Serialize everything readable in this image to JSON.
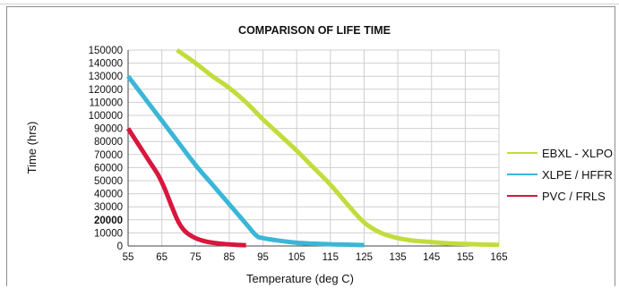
{
  "chart_data": {
    "type": "line",
    "title": "COMPARISON OF LIFE TIME",
    "xlabel": "Temperature (deg C)",
    "ylabel": "Time (hrs)",
    "xlim": [
      55,
      165
    ],
    "ylim": [
      0,
      150000
    ],
    "x_ticks": [
      "55",
      "65",
      "75",
      "85",
      "95",
      "105",
      "115",
      "125",
      "135",
      "145",
      "155",
      "165"
    ],
    "y_ticks": [
      "0",
      "10000",
      "20000",
      "30000",
      "40000",
      "50000",
      "60000",
      "70000",
      "80000",
      "90000",
      "100000",
      "110000",
      "120000",
      "130000",
      "140000",
      "150000"
    ],
    "y_ticks_bold": [
      "20000"
    ],
    "grid": true,
    "legend_position": "right",
    "series": [
      {
        "name": "EBXL - XLPO",
        "color": "#c2dc3c",
        "x": [
          69.5,
          75,
          80,
          85,
          90,
          95,
          100,
          105,
          110,
          115,
          120,
          125,
          130,
          135,
          140,
          145,
          150,
          155,
          160,
          165
        ],
        "y": [
          150000,
          140000,
          130000,
          121000,
          110000,
          97000,
          85000,
          73000,
          60000,
          47000,
          32000,
          18000,
          10000,
          6000,
          4000,
          3000,
          2000,
          1500,
          1100,
          800
        ]
      },
      {
        "name": "XLPE / HFFR",
        "color": "#3ab6d8",
        "x": [
          55,
          60,
          65,
          70,
          75,
          80,
          85,
          90,
          93,
          95,
          100,
          105,
          110,
          115,
          120,
          125
        ],
        "y": [
          130000,
          113000,
          96000,
          79000,
          62000,
          47000,
          32000,
          17000,
          8000,
          6000,
          4000,
          2500,
          1800,
          1300,
          1000,
          700
        ]
      },
      {
        "name": "PVC / FRLS",
        "color": "#d8163e",
        "x": [
          55,
          58,
          61,
          64,
          66,
          68,
          70,
          72,
          75,
          78,
          81,
          84,
          87,
          90
        ],
        "y": [
          90000,
          78000,
          66000,
          54000,
          43000,
          30000,
          18000,
          11000,
          6000,
          3500,
          2200,
          1400,
          900,
          600
        ]
      }
    ]
  }
}
